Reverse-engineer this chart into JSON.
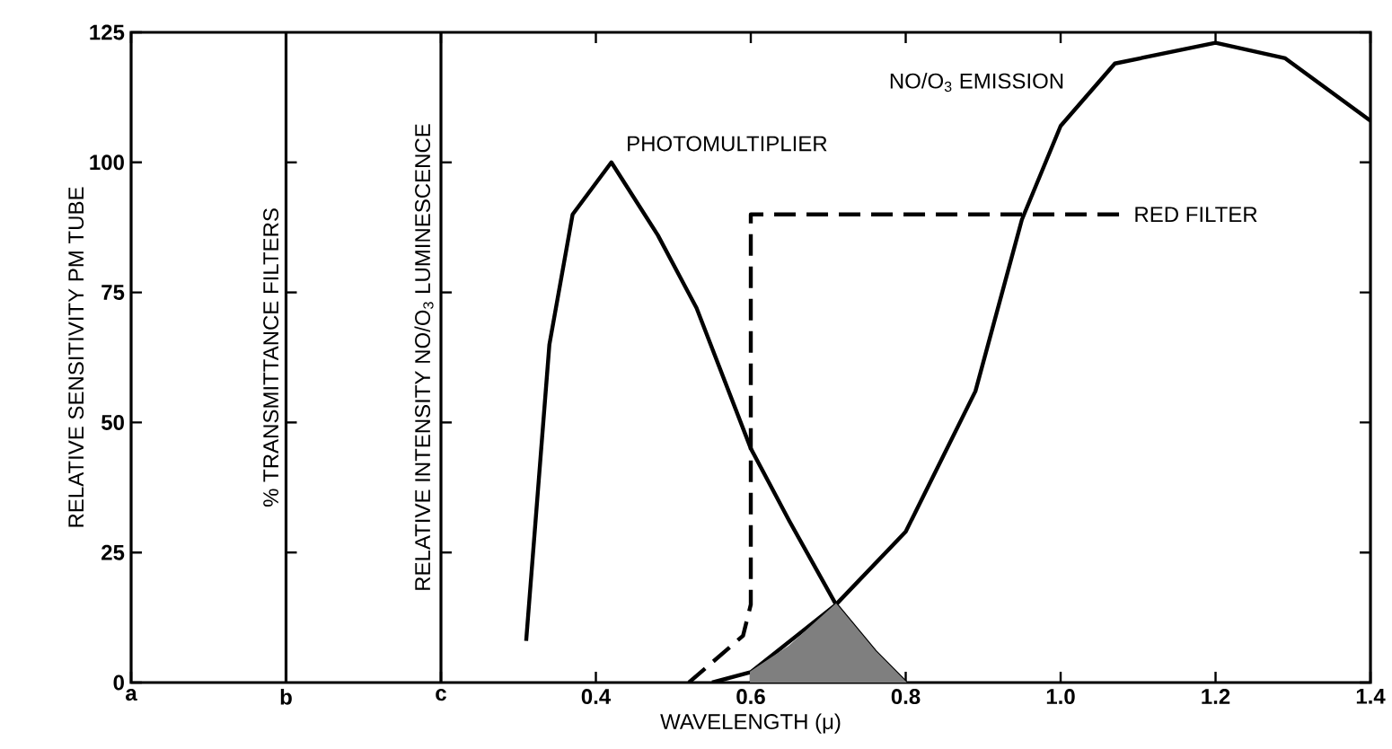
{
  "chart_data": {
    "type": "line",
    "xlabel": "WAVELENGTH (μ)",
    "ylabel": "RELATIVE SENSITIVITY  PM TUBE",
    "xlim": [
      -0.2,
      1.4
    ],
    "xticks": [
      {
        "value": -0.2,
        "label": "a"
      },
      {
        "value": 0,
        "label": "b"
      },
      {
        "value": 0.2,
        "label": "c"
      },
      0.4,
      0.6,
      0.8,
      {
        "value": 1.0,
        "label": "1.0"
      },
      1.2,
      1.4
    ],
    "ylim": [
      0,
      125
    ],
    "yticks": [
      0,
      25,
      50,
      75,
      100,
      125
    ],
    "series": [
      {
        "name": "PHOTOMULTIPLIER",
        "color": "#000000",
        "line_style": "solid",
        "x": [
          0.31,
          0.34,
          0.37,
          0.42,
          0.48,
          0.53,
          0.6,
          0.65,
          0.71,
          0.76,
          0.8
        ],
        "values": [
          8,
          65,
          90,
          100,
          86,
          72,
          45,
          31,
          15,
          6,
          0
        ]
      },
      {
        "name": "NO/O$_{3}$ EMISSION",
        "color": "#000000",
        "line_style": "solid",
        "x": [
          0.55,
          0.6,
          0.71,
          0.8,
          0.89,
          0.95,
          1.0,
          1.07,
          1.2,
          1.29,
          1.4
        ],
        "values": [
          0,
          2,
          15,
          29,
          56,
          89,
          107,
          119,
          123,
          120,
          108
        ]
      },
      {
        "name": "RED FILTER",
        "color": "#000000",
        "line_style": "dashed",
        "x": [
          0.52,
          0.59,
          0.6,
          0.6,
          1.08
        ],
        "values": [
          0,
          9,
          15,
          90,
          90
        ]
      },
      {
        "type": "area",
        "color": "#7f7f7f",
        "x": [
          0.6,
          0.65,
          0.71,
          0.76,
          0.8
        ],
        "values": [
          2,
          7,
          15,
          6,
          0
        ]
      }
    ],
    "ref_lines": [
      {
        "axis": "x",
        "value": 0,
        "label": "% TRANSMITTANCE  FILTERS"
      },
      {
        "axis": "x",
        "value": 0.2,
        "label": "RELATIVE INTENSITY NO/O$_{3}$ LUMINESCENCE"
      }
    ],
    "grid": false,
    "legend": false,
    "marker": "none"
  }
}
